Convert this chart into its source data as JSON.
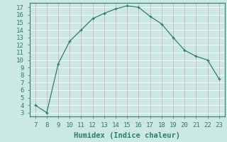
{
  "x": [
    7,
    8,
    9,
    10,
    11,
    12,
    13,
    14,
    15,
    16,
    17,
    18,
    19,
    20,
    21,
    22,
    23
  ],
  "y": [
    4.0,
    3.0,
    9.5,
    12.5,
    14.0,
    15.5,
    16.2,
    16.8,
    17.2,
    17.0,
    15.8,
    14.8,
    13.0,
    11.3,
    10.5,
    10.0,
    7.5
  ],
  "xlabel": "Humidex (Indice chaleur)",
  "ylim": [
    2.5,
    17.6
  ],
  "xlim": [
    6.5,
    23.5
  ],
  "line_color": "#2d7d6e",
  "bg_color": "#cce8e4",
  "grid_color": "#b8d8d4",
  "tick_color": "#2d7d6e",
  "yticks": [
    3,
    4,
    5,
    6,
    7,
    8,
    9,
    10,
    11,
    12,
    13,
    14,
    15,
    16,
    17
  ],
  "xticks": [
    7,
    8,
    9,
    10,
    11,
    12,
    13,
    14,
    15,
    16,
    17,
    18,
    19,
    20,
    21,
    22,
    23
  ],
  "xlabel_fontsize": 7.5,
  "tick_fontsize": 6.5
}
